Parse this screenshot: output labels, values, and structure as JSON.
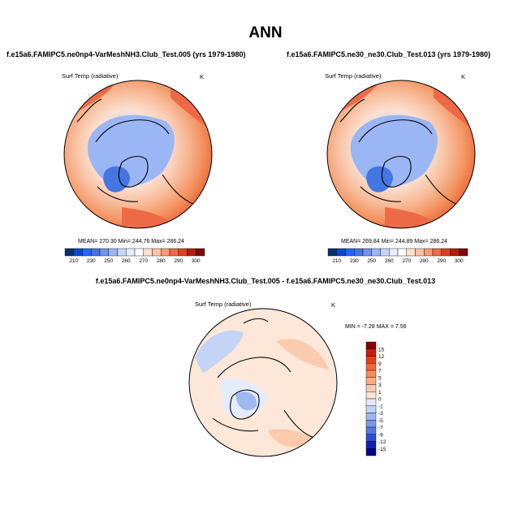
{
  "page": {
    "title": "ANN"
  },
  "chart_data": [
    {
      "type": "heatmap",
      "projection": "polar-stereographic",
      "title": "f.e15a6.FAMIPC5.ne0np4-VarMeshNH3.Club_Test.005 (yrs 1979-1980)",
      "variable": "Surf Temp (radiative)",
      "units": "K",
      "stats_text": "MEAN= 270.30  Min= 244.76  Max= 286.24",
      "mean": 270.3,
      "min": 244.76,
      "max": 286.24,
      "colorbar": {
        "levels": [
          210,
          220,
          230,
          240,
          250,
          255,
          260,
          265,
          270,
          275,
          280,
          285,
          290,
          295,
          300
        ],
        "tick_labels": [
          "210",
          "230",
          "250",
          "260",
          "270",
          "280",
          "290",
          "300"
        ],
        "colors": [
          "#08306b",
          "#0d47c9",
          "#2166ff",
          "#4575e0",
          "#6f94ee",
          "#9bb6f5",
          "#c6d6fa",
          "#e7effc",
          "#ffffff",
          "#fde2cc",
          "#fbc2a4",
          "#f79b76",
          "#ee6a46",
          "#d8431f",
          "#b01e0e",
          "#7a0a05"
        ]
      }
    },
    {
      "type": "heatmap",
      "projection": "polar-stereographic",
      "title": "f.e15a6.FAMIPC5.ne30_ne30.Club_Test.013 (yrs 1979-1980)",
      "variable": "Surf Temp (radiative)",
      "units": "K",
      "stats_text": "MEAN= 269.84  Min= 244.89  Max= 286.24",
      "mean": 269.84,
      "min": 244.89,
      "max": 286.24,
      "colorbar": {
        "levels": [
          210,
          220,
          230,
          240,
          250,
          255,
          260,
          265,
          270,
          275,
          280,
          285,
          290,
          295,
          300
        ],
        "tick_labels": [
          "210",
          "230",
          "250",
          "260",
          "270",
          "280",
          "290",
          "300"
        ],
        "colors": [
          "#08306b",
          "#0d47c9",
          "#2166ff",
          "#4575e0",
          "#6f94ee",
          "#9bb6f5",
          "#c6d6fa",
          "#e7effc",
          "#ffffff",
          "#fde2cc",
          "#fbc2a4",
          "#f79b76",
          "#ee6a46",
          "#d8431f",
          "#b01e0e",
          "#7a0a05"
        ]
      }
    },
    {
      "type": "heatmap",
      "projection": "polar-stereographic",
      "title": "f.e15a6.FAMIPC5.ne0np4-VarMeshNH3.Club_Test.005 - f.e15a6.FAMIPC5.ne30_ne30.Club_Test.013",
      "variable": "Surf Temp (radiative)",
      "units": "K",
      "stats_text": "MIN =  -7.28 MAX =   7.56",
      "min": -7.28,
      "max": 7.56,
      "colorbar": {
        "tick_labels": [
          "15",
          "12",
          "9",
          "7",
          "5",
          "3",
          "1",
          "0",
          "-1",
          "-3",
          "-5",
          "-7",
          "-9",
          "-12",
          "-15"
        ],
        "colors": [
          "#8b0000",
          "#c81e0f",
          "#e8401c",
          "#f26a3a",
          "#f58d5c",
          "#f8ac84",
          "#fbcbae",
          "#fde7d8",
          "#e4ecfb",
          "#c4d4f6",
          "#9fb8f0",
          "#7a9ae9",
          "#5479de",
          "#2a4fd0",
          "#1020b0",
          "#00008b"
        ]
      }
    }
  ]
}
